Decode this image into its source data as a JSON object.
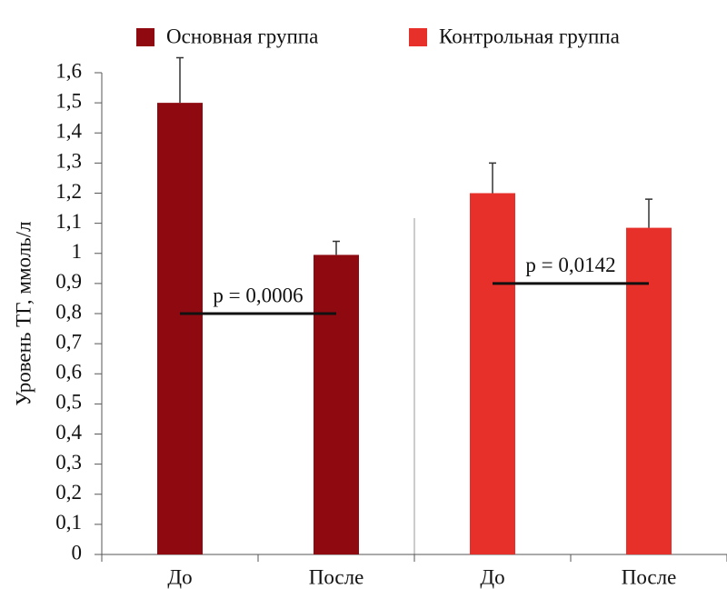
{
  "chart_data": {
    "type": "bar",
    "y_label": "Уровень ТГ, ммоль/л",
    "categories": [
      "До",
      "После",
      "До",
      "После"
    ],
    "series": [
      {
        "name": "Основная группа",
        "color": "#8e0a10",
        "values": [
          1.5,
          0.995,
          null,
          null
        ],
        "errors": [
          0.15,
          0.045,
          null,
          null
        ]
      },
      {
        "name": "Контрольная группа",
        "color": "#e8302a",
        "values": [
          null,
          null,
          1.2,
          1.085
        ],
        "errors": [
          null,
          null,
          0.1,
          0.095
        ]
      }
    ],
    "annotations": [
      {
        "text": "p = 0,0006",
        "y": 0.8
      },
      {
        "text": "p = 0,0142",
        "y": 0.9
      }
    ],
    "ylim": [
      0,
      1.6
    ],
    "yticks": [
      0,
      {
        "value": 0.1,
        "label": "0,1"
      },
      {
        "value": 0.2,
        "label": "0,2"
      },
      {
        "value": 0.3,
        "label": "0,3"
      },
      {
        "value": 0.4,
        "label": "0,4"
      },
      {
        "value": 0.5,
        "label": "0,5"
      },
      {
        "value": 0.6,
        "label": "0,6"
      },
      {
        "value": 0.7,
        "label": "0,7"
      },
      {
        "value": 0.8,
        "label": "0,8"
      },
      {
        "value": 0.9,
        "label": "0,9"
      },
      1,
      {
        "value": 1.1,
        "label": "1,1"
      },
      {
        "value": 1.2,
        "label": "1,2"
      },
      {
        "value": 1.3,
        "label": "1,3"
      },
      {
        "value": 1.4,
        "label": "1,4"
      },
      {
        "value": 1.5,
        "label": "1,5"
      },
      {
        "value": 1.6,
        "label": "1,6"
      }
    ],
    "legend": "top"
  }
}
